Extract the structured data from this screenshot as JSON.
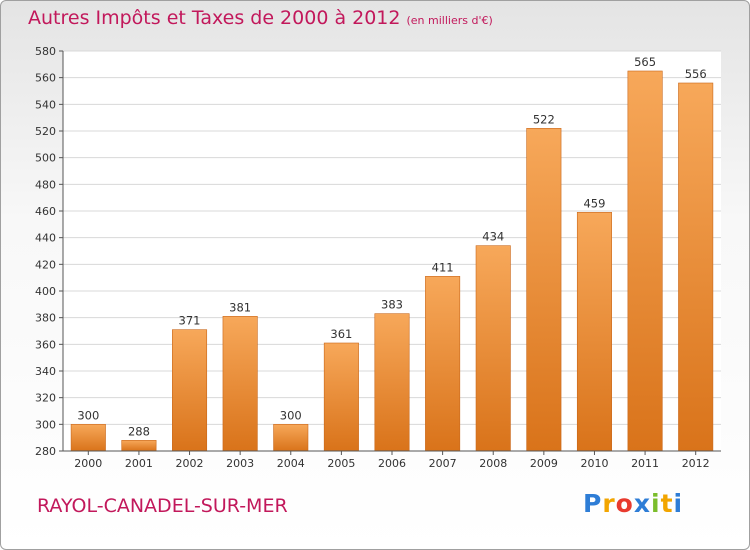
{
  "header": {
    "title": "Autres Impôts et Taxes de 2000 à 2012",
    "subtitle": "(en milliers d'€)"
  },
  "commune": "RAYOL-CANADEL-SUR-MER",
  "logo": {
    "letters": [
      "P",
      "r",
      "o",
      "x",
      "i",
      "t",
      "i"
    ],
    "colors": [
      "#2e7dd6",
      "#f2a500",
      "#e83a2e",
      "#2e7dd6",
      "#7bbd2c",
      "#f2a500",
      "#2e7dd6"
    ]
  },
  "chart_data": {
    "type": "bar",
    "title": "Autres Impôts et Taxes de 2000 à 2012",
    "subtitle": "(en milliers d'€)",
    "categories": [
      "2000",
      "2001",
      "2002",
      "2003",
      "2004",
      "2005",
      "2006",
      "2007",
      "2008",
      "2009",
      "2010",
      "2011",
      "2012"
    ],
    "values": [
      300,
      288,
      371,
      381,
      300,
      361,
      383,
      411,
      434,
      522,
      459,
      565,
      556
    ],
    "ylim": [
      280,
      580
    ],
    "yticks": [
      280,
      300,
      320,
      340,
      360,
      380,
      400,
      420,
      440,
      460,
      480,
      500,
      520,
      540,
      560,
      580
    ],
    "grid": true,
    "bar_color": "#f0953a",
    "bar_color_light": "#f7a85a",
    "bar_color_dark": "#d9731a"
  }
}
